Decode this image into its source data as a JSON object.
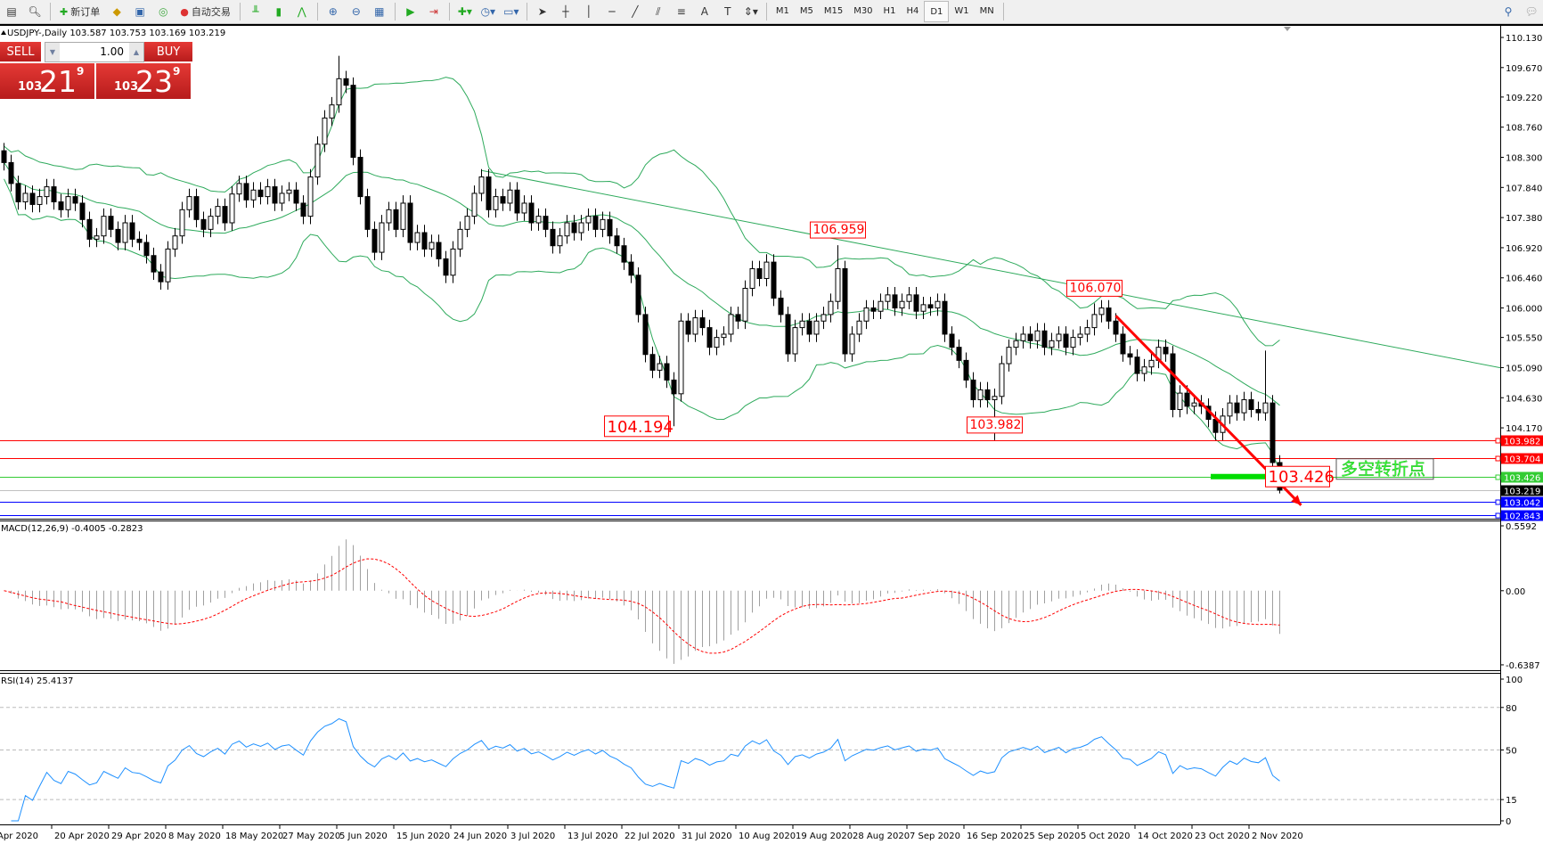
{
  "toolbar": {
    "new_order": "新订单",
    "auto_trading": "自动交易",
    "timeframes": [
      "M1",
      "M5",
      "M15",
      "M30",
      "H1",
      "H4",
      "D1",
      "W1",
      "MN"
    ],
    "selected_timeframe": "D1"
  },
  "chart": {
    "header": "USDJPY-,Daily  103.587 103.753 103.169 103.219",
    "macd_label": "MACD(12,26,9) -0.4005 -0.2823",
    "rsi_label": "RSI(14) 25.4137"
  },
  "trade_panel": {
    "sell": "SELL",
    "buy": "BUY",
    "lot": "1.00",
    "sell_price": {
      "big": "103",
      "main": "21",
      "sup": "9"
    },
    "buy_price": {
      "big": "103",
      "main": "23",
      "sup": "9"
    }
  },
  "colors": {
    "bands": "#2eaa5c",
    "trendline": "#2eaa5c",
    "red": "#ff0000",
    "green": "#33cc33",
    "blue": "#0000ff",
    "rsi": "#1e90ff",
    "macd_signal": "#ff0000",
    "macd_hist": "#a0a0a0",
    "annotation_text": "#33ff33"
  },
  "chart_data": {
    "type": "candlestick",
    "symbol": "USDJPY-",
    "timeframe": "Daily",
    "price_ticks": [
      "110.130",
      "109.670",
      "109.220",
      "108.760",
      "108.300",
      "107.840",
      "107.380",
      "106.920",
      "106.460",
      "106.000",
      "105.550",
      "105.090",
      "104.630",
      "104.170"
    ],
    "date_ticks": [
      "Apr 2020",
      "20 Apr 2020",
      "29 Apr 2020",
      "8 May 2020",
      "18 May 2020",
      "27 May 2020",
      "5 Jun 2020",
      "15 Jun 2020",
      "24 Jun 2020",
      "3 Jul 2020",
      "13 Jul 2020",
      "22 Jul 2020",
      "31 Jul 2020",
      "10 Aug 2020",
      "19 Aug 2020",
      "28 Aug 2020",
      "7 Sep 2020",
      "16 Sep 2020",
      "25 Sep 2020",
      "5 Oct 2020",
      "14 Oct 2020",
      "23 Oct 2020",
      "2 Nov 2020"
    ],
    "first_open": 108.4,
    "closes": [
      108.22,
      107.9,
      107.62,
      107.75,
      107.58,
      107.7,
      107.85,
      107.62,
      107.5,
      107.7,
      107.6,
      107.35,
      107.05,
      107.1,
      107.4,
      107.2,
      107.0,
      107.3,
      107.05,
      107.0,
      106.8,
      106.55,
      106.4,
      106.9,
      107.1,
      107.5,
      107.7,
      107.35,
      107.2,
      107.4,
      107.55,
      107.3,
      107.74,
      107.9,
      107.65,
      107.8,
      107.7,
      107.85,
      107.6,
      107.75,
      107.8,
      107.6,
      107.4,
      108.0,
      108.5,
      108.9,
      109.1,
      109.5,
      109.4,
      108.3,
      107.7,
      107.2,
      106.85,
      107.3,
      107.5,
      107.2,
      107.6,
      107.0,
      107.15,
      106.9,
      107.0,
      106.75,
      106.5,
      106.9,
      107.2,
      107.4,
      107.75,
      108.0,
      107.5,
      107.7,
      107.6,
      107.8,
      107.45,
      107.6,
      107.3,
      107.4,
      107.2,
      106.95,
      107.1,
      107.3,
      107.15,
      107.3,
      107.4,
      107.2,
      107.35,
      107.1,
      106.95,
      106.7,
      106.5,
      105.9,
      105.29,
      105.05,
      105.15,
      104.9,
      104.69,
      105.8,
      105.6,
      105.85,
      105.7,
      105.4,
      105.55,
      105.6,
      105.9,
      105.8,
      106.3,
      106.6,
      106.45,
      106.7,
      106.15,
      105.9,
      105.3,
      105.7,
      105.8,
      105.6,
      105.8,
      105.9,
      106.1,
      106.6,
      105.3,
      105.6,
      105.8,
      106.0,
      105.95,
      106.1,
      106.2,
      106.0,
      106.1,
      106.2,
      105.95,
      106.05,
      106.0,
      106.1,
      105.6,
      105.4,
      105.2,
      104.9,
      104.6,
      104.75,
      104.6,
      104.65,
      105.15,
      105.4,
      105.5,
      105.6,
      105.5,
      105.65,
      105.4,
      105.5,
      105.6,
      105.4,
      105.55,
      105.6,
      105.7,
      105.9,
      106.0,
      105.8,
      105.6,
      105.3,
      105.25,
      105.0,
      105.1,
      105.2,
      105.4,
      105.3,
      104.45,
      104.7,
      104.5,
      104.55,
      104.5,
      104.3,
      104.1,
      104.35,
      104.55,
      104.4,
      104.6,
      104.45,
      104.4,
      104.55,
      103.64,
      103.22
    ],
    "notable_extremes": {
      "47": 109.85,
      "94": 104.194,
      "117": 106.959,
      "139": 103.982,
      "153": 106.07,
      "177": 105.35,
      "179": 103.169
    },
    "last_bar": {
      "open": 103.587,
      "high": 103.753,
      "low": 103.169,
      "close": 103.219
    },
    "horizontal_lines": [
      {
        "price": 103.982,
        "label": "103.982",
        "color": "#ff0000"
      },
      {
        "price": 103.704,
        "label": "103.704",
        "color": "#ff0000"
      },
      {
        "price": 103.426,
        "label": "103.426",
        "color": "#33cc33"
      },
      {
        "price": 103.219,
        "label": "103.219",
        "color": "#000000",
        "line": "#c0c0c0"
      },
      {
        "price": 103.042,
        "label": "103.042",
        "color": "#0000ff"
      },
      {
        "price": 102.843,
        "label": "102.843",
        "color": "#0000ff"
      }
    ],
    "price_labels": [
      {
        "text": "106.959",
        "bar": 117,
        "price": 106.959,
        "big": false
      },
      {
        "text": "106.070",
        "bar": 153,
        "price": 106.07,
        "big": false
      },
      {
        "text": "104.194",
        "bar": 94,
        "price": 104.194,
        "big": true
      },
      {
        "text": "103.982",
        "bar": 139,
        "price": 103.982,
        "big": false
      },
      {
        "text": "103.426",
        "bar": 172,
        "price": 103.426,
        "big": true
      }
    ],
    "annotation": {
      "text": "多空转折点",
      "price": 103.426
    },
    "trendline": {
      "start": {
        "bar": 67,
        "price": 108.1
      },
      "end": {
        "bar": 216,
        "price": 104.96
      }
    },
    "arrow": {
      "start": {
        "bar": 156,
        "price": 105.88
      },
      "end": {
        "bar": 182,
        "price": 102.99
      }
    },
    "bollinger": {
      "period": 20,
      "deviations": 2
    },
    "macd": {
      "fast": 12,
      "slow": 26,
      "signal": 9,
      "ticks": [
        "0.5592",
        "0.00",
        "-0.6387"
      ],
      "range": [
        -0.6387,
        0.5592
      ]
    },
    "rsi": {
      "period": 14,
      "ticks": [
        "100",
        "80",
        "50",
        "15",
        "0"
      ],
      "levels": [
        80,
        50,
        15
      ],
      "range": [
        0,
        100
      ]
    }
  }
}
